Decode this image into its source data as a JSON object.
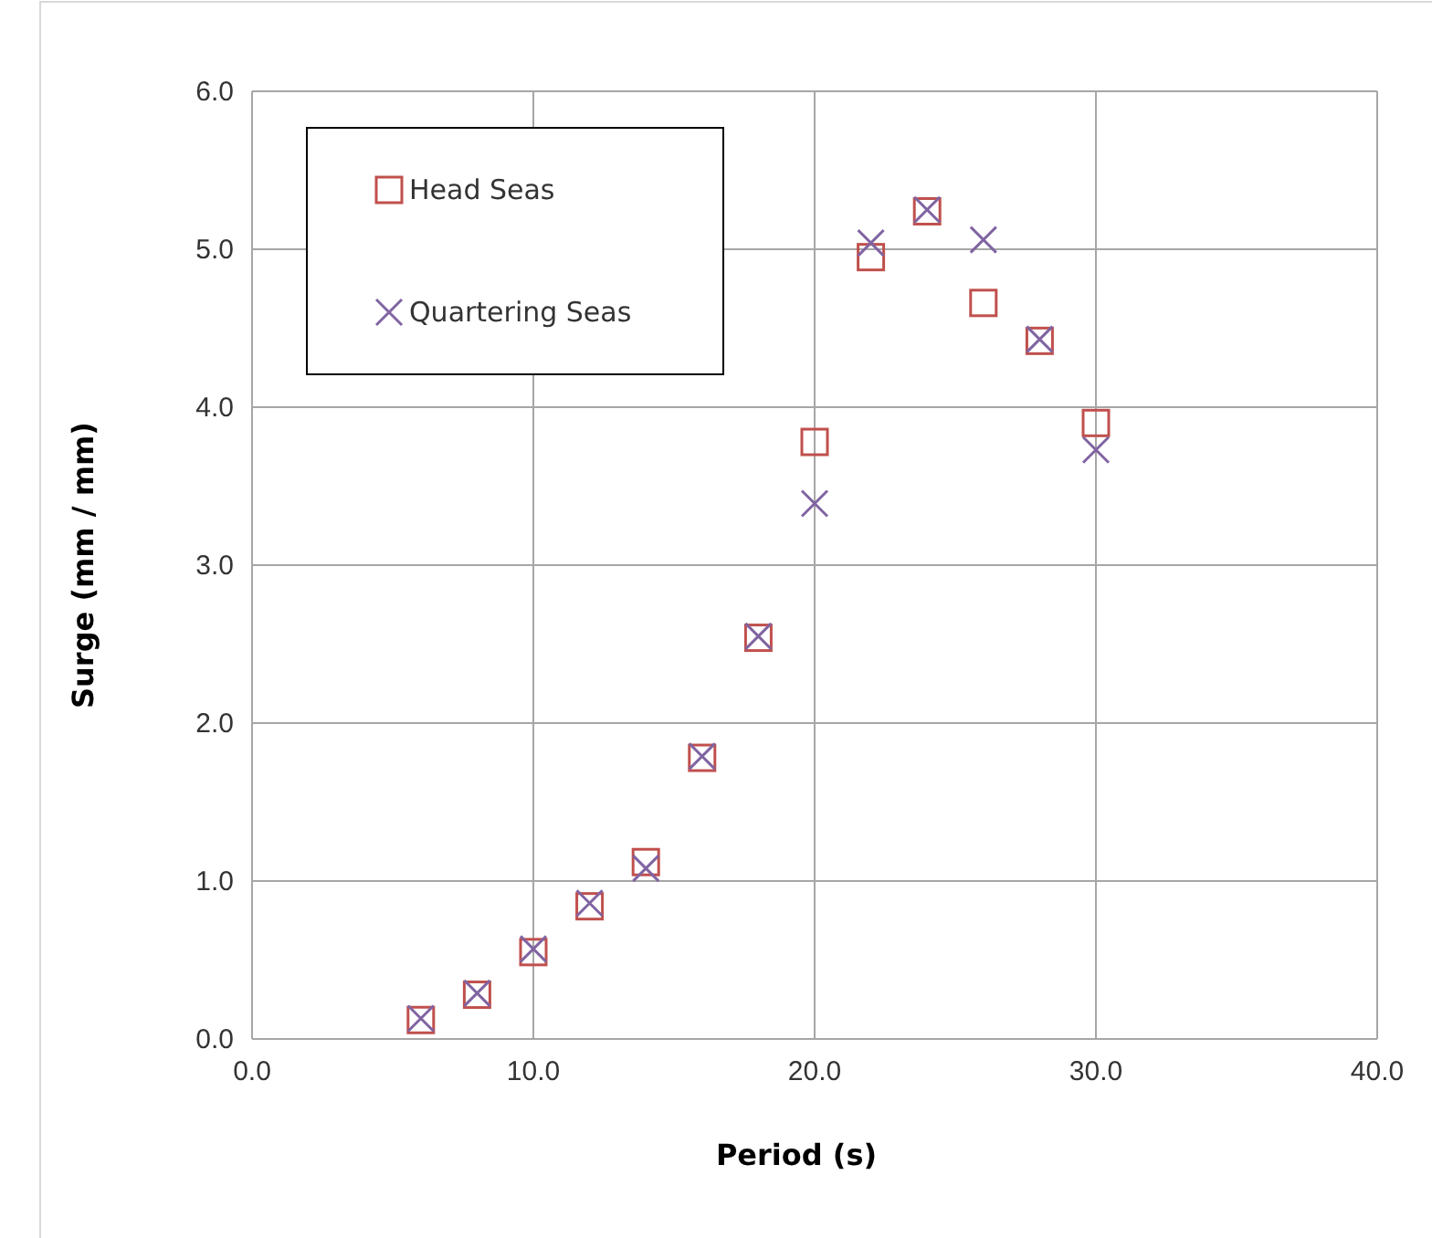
{
  "chart_data": {
    "type": "scatter",
    "xlabel": "Period (s)",
    "ylabel": "Surge (mm / mm)",
    "xlim": [
      0,
      40
    ],
    "ylim": [
      0,
      6
    ],
    "xticks": [
      {
        "value": 0,
        "label": "0.0"
      },
      {
        "value": 10,
        "label": "10.0"
      },
      {
        "value": 20,
        "label": "20.0"
      },
      {
        "value": 30,
        "label": "30.0"
      },
      {
        "value": 40,
        "label": "40.0"
      }
    ],
    "yticks": [
      {
        "value": 0,
        "label": "0.0"
      },
      {
        "value": 1,
        "label": "1.0"
      },
      {
        "value": 2,
        "label": "2.0"
      },
      {
        "value": 3,
        "label": "3.0"
      },
      {
        "value": 4,
        "label": "4.0"
      },
      {
        "value": 5,
        "label": "5.0"
      },
      {
        "value": 6,
        "label": "6.0"
      }
    ],
    "grid": true,
    "legend": "top left",
    "series": [
      {
        "name": "Head Seas",
        "color": "#c0504d",
        "marker": "square",
        "x": [
          6,
          8,
          10,
          12,
          14,
          16,
          18,
          20,
          22,
          24,
          26,
          28,
          30
        ],
        "values": [
          0.12,
          0.28,
          0.55,
          0.84,
          1.12,
          1.78,
          2.54,
          3.78,
          4.95,
          5.24,
          4.66,
          4.42,
          3.9
        ]
      },
      {
        "name": "Quartering Seas",
        "color": "#8064a2",
        "marker": "cross",
        "x": [
          6,
          8,
          10,
          12,
          14,
          16,
          18,
          20,
          22,
          24,
          26,
          28,
          30
        ],
        "values": [
          0.13,
          0.29,
          0.57,
          0.86,
          1.08,
          1.79,
          2.55,
          3.39,
          5.04,
          5.25,
          5.06,
          4.43,
          3.73
        ]
      }
    ]
  }
}
